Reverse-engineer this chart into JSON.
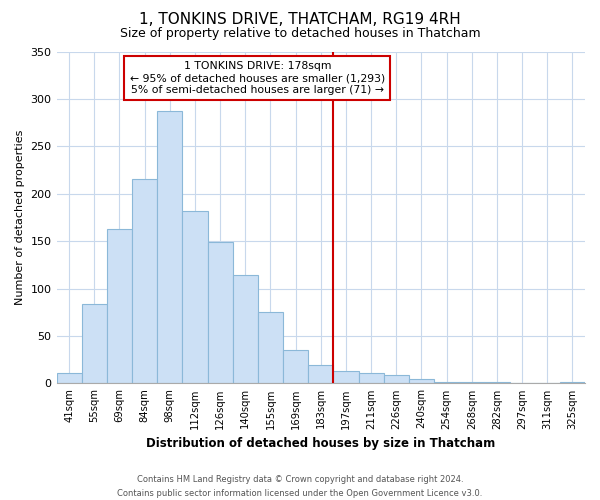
{
  "title": "1, TONKINS DRIVE, THATCHAM, RG19 4RH",
  "subtitle": "Size of property relative to detached houses in Thatcham",
  "xlabel": "Distribution of detached houses by size in Thatcham",
  "ylabel": "Number of detached properties",
  "bar_labels": [
    "41sqm",
    "55sqm",
    "69sqm",
    "84sqm",
    "98sqm",
    "112sqm",
    "126sqm",
    "140sqm",
    "155sqm",
    "169sqm",
    "183sqm",
    "197sqm",
    "211sqm",
    "226sqm",
    "240sqm",
    "254sqm",
    "268sqm",
    "282sqm",
    "297sqm",
    "311sqm",
    "325sqm"
  ],
  "bar_values": [
    11,
    84,
    163,
    216,
    287,
    182,
    149,
    114,
    75,
    35,
    19,
    13,
    11,
    9,
    5,
    2,
    1,
    1,
    0,
    0,
    1
  ],
  "bar_color": "#cce0f5",
  "bar_edge_color": "#8bb8d8",
  "vline_x_index": 10,
  "vline_color": "#cc0000",
  "annotation_title": "1 TONKINS DRIVE: 178sqm",
  "annotation_line1": "← 95% of detached houses are smaller (1,293)",
  "annotation_line2": "5% of semi-detached houses are larger (71) →",
  "annotation_box_color": "#ffffff",
  "annotation_border_color": "#cc0000",
  "ylim": [
    0,
    350
  ],
  "yticks": [
    0,
    50,
    100,
    150,
    200,
    250,
    300,
    350
  ],
  "footer_line1": "Contains HM Land Registry data © Crown copyright and database right 2024.",
  "footer_line2": "Contains public sector information licensed under the Open Government Licence v3.0.",
  "background_color": "#ffffff",
  "grid_color": "#c8d8ec",
  "title_fontsize": 11,
  "subtitle_fontsize": 9
}
